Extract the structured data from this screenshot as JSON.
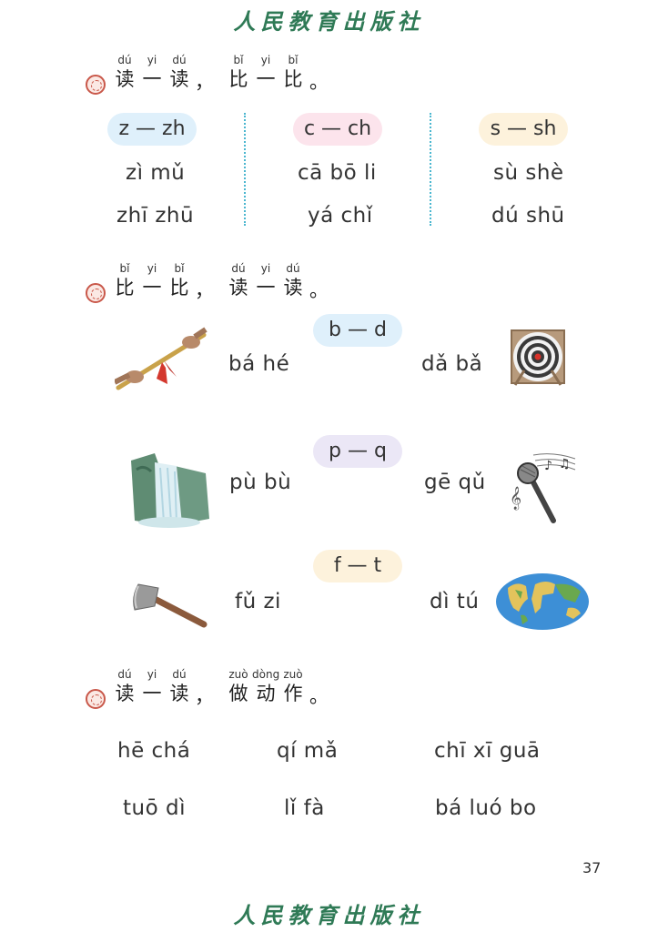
{
  "publisher": "人民教育出版社",
  "section1": {
    "heading": [
      {
        "py": "dú",
        "ch": "读"
      },
      {
        "py": "yi",
        "ch": "一"
      },
      {
        "py": "dú",
        "ch": "读"
      },
      {
        "py": "bǐ",
        "ch": "比"
      },
      {
        "py": "yi",
        "ch": "一"
      },
      {
        "py": "bǐ",
        "ch": "比"
      }
    ],
    "comma": "，",
    "period": "。",
    "columns": [
      {
        "pill": "z — zh",
        "words": [
          "zì mǔ",
          "zhī zhū"
        ]
      },
      {
        "pill": "c — ch",
        "words": [
          "cā bō li",
          "yá chǐ"
        ]
      },
      {
        "pill": "s — sh",
        "words": [
          "sù shè",
          "dú shū"
        ]
      }
    ]
  },
  "section2": {
    "heading": [
      {
        "py": "bǐ",
        "ch": "比"
      },
      {
        "py": "yi",
        "ch": "一"
      },
      {
        "py": "bǐ",
        "ch": "比"
      },
      {
        "py": "dú",
        "ch": "读"
      },
      {
        "py": "yi",
        "ch": "一"
      },
      {
        "py": "dú",
        "ch": "读"
      }
    ],
    "comma": "，",
    "period": "。",
    "rows": [
      {
        "pill": "b — d",
        "left_word": "bá hé",
        "right_word": "dǎ bǎ",
        "left_icon": "tug-of-war-rope-icon",
        "right_icon": "target-icon"
      },
      {
        "pill": "p — q",
        "left_word": "pù bù",
        "right_word": "gē qǔ",
        "left_icon": "waterfall-icon",
        "right_icon": "microphone-icon"
      },
      {
        "pill": "f — t",
        "left_word": "fǔ zi",
        "right_word": "dì tú",
        "left_icon": "axe-icon",
        "right_icon": "world-map-icon"
      }
    ]
  },
  "section3": {
    "heading": [
      {
        "py": "dú",
        "ch": "读"
      },
      {
        "py": "yi",
        "ch": "一"
      },
      {
        "py": "dú",
        "ch": "读"
      },
      {
        "py": "zuò",
        "ch": "做"
      },
      {
        "py": "dòng",
        "ch": "动"
      },
      {
        "py": "zuò",
        "ch": "作"
      }
    ],
    "comma": "，",
    "period": "。",
    "words": [
      [
        "hē chá",
        "qí mǎ",
        "chī xī guā"
      ],
      [
        "tuō dì",
        "lǐ fà",
        "bá luó bo"
      ]
    ]
  },
  "page_number": "37"
}
